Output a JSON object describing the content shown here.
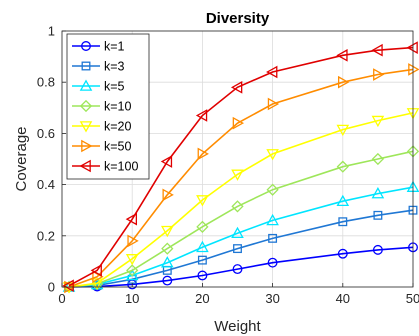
{
  "chart_data": {
    "type": "line",
    "title": "Diversity",
    "xlabel": "Weight",
    "ylabel": "Coverage",
    "xlim": [
      0,
      50
    ],
    "ylim": [
      0,
      1
    ],
    "xticks": [
      0,
      10,
      20,
      30,
      40,
      50
    ],
    "yticks": [
      0,
      0.2,
      0.4,
      0.6,
      0.8,
      1
    ],
    "ytick_labels": [
      "0",
      "0.2",
      "0.4",
      "0.6",
      "0.8",
      "1"
    ],
    "grid": true,
    "legend_position": "top-left",
    "x": [
      1,
      5,
      10,
      15,
      20,
      25,
      30,
      40,
      45,
      50
    ],
    "series": [
      {
        "name": "k=1",
        "color": "#0000ff",
        "marker": "circle",
        "values": [
          0.0,
          0.002,
          0.01,
          0.025,
          0.045,
          0.07,
          0.095,
          0.13,
          0.145,
          0.155
        ]
      },
      {
        "name": "k=3",
        "color": "#1f77d4",
        "marker": "square",
        "values": [
          0.0,
          0.006,
          0.03,
          0.065,
          0.105,
          0.15,
          0.19,
          0.255,
          0.28,
          0.3
        ]
      },
      {
        "name": "k=5",
        "color": "#00e5ff",
        "marker": "triangle-up",
        "values": [
          0.0,
          0.01,
          0.045,
          0.095,
          0.155,
          0.21,
          0.26,
          0.335,
          0.365,
          0.39
        ]
      },
      {
        "name": "k=10",
        "color": "#9ee65a",
        "marker": "diamond",
        "values": [
          0.0,
          0.012,
          0.065,
          0.15,
          0.235,
          0.315,
          0.38,
          0.47,
          0.5,
          0.53
        ]
      },
      {
        "name": "k=20",
        "color": "#ffff00",
        "marker": "triangle-down",
        "values": [
          0.0,
          0.015,
          0.11,
          0.22,
          0.34,
          0.44,
          0.52,
          0.615,
          0.65,
          0.68
        ]
      },
      {
        "name": "k=50",
        "color": "#ff8c00",
        "marker": "triangle-right",
        "values": [
          0.0,
          0.04,
          0.18,
          0.36,
          0.52,
          0.64,
          0.715,
          0.8,
          0.83,
          0.85
        ]
      },
      {
        "name": "k=100",
        "color": "#e00000",
        "marker": "triangle-left",
        "values": [
          0.005,
          0.065,
          0.265,
          0.49,
          0.67,
          0.78,
          0.84,
          0.905,
          0.925,
          0.935
        ]
      }
    ]
  }
}
